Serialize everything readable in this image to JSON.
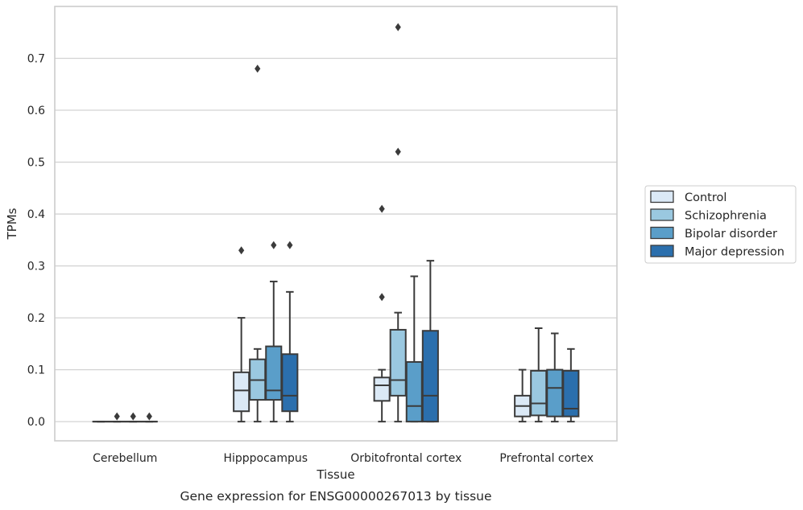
{
  "caption": "Gene expression for ENSG00000267013 by tissue",
  "chart_data": {
    "type": "box",
    "xlabel": "Tissue",
    "ylabel": "TPMs",
    "ylim": [
      -0.037,
      0.8
    ],
    "yticks": [
      "0.0",
      "0.1",
      "0.2",
      "0.3",
      "0.4",
      "0.5",
      "0.6",
      "0.7"
    ],
    "grid": true,
    "legend_position": "right",
    "categories": [
      "Cerebellum",
      "Hipppocampus",
      "Orbitofrontal cortex",
      "Prefrontal cortex"
    ],
    "series": [
      {
        "name": "Control",
        "color": "#dbe9f6",
        "boxes": [
          {
            "whislo": 0,
            "q1": 0,
            "med": 0,
            "q3": 0,
            "whishi": 0,
            "fliers": []
          },
          {
            "whislo": 0,
            "q1": 0.02,
            "med": 0.06,
            "q3": 0.095,
            "whishi": 0.2,
            "fliers": [
              0.33
            ]
          },
          {
            "whislo": 0,
            "q1": 0.04,
            "med": 0.07,
            "q3": 0.085,
            "whishi": 0.1,
            "fliers": [
              0.24,
              0.41
            ]
          },
          {
            "whislo": 0,
            "q1": 0.01,
            "med": 0.03,
            "q3": 0.05,
            "whishi": 0.1,
            "fliers": []
          }
        ]
      },
      {
        "name": "Schizophrenia",
        "color": "#9ac8e0",
        "boxes": [
          {
            "whislo": 0,
            "q1": 0,
            "med": 0,
            "q3": 0,
            "whishi": 0,
            "fliers": [
              0.01
            ]
          },
          {
            "whislo": 0,
            "q1": 0.042,
            "med": 0.08,
            "q3": 0.12,
            "whishi": 0.14,
            "fliers": [
              0.68
            ]
          },
          {
            "whislo": 0,
            "q1": 0.05,
            "med": 0.08,
            "q3": 0.177,
            "whishi": 0.21,
            "fliers": [
              0.52,
              0.76
            ]
          },
          {
            "whislo": 0,
            "q1": 0.012,
            "med": 0.035,
            "q3": 0.098,
            "whishi": 0.18,
            "fliers": []
          }
        ]
      },
      {
        "name": "Bipolar disorder",
        "color": "#5a9ec9",
        "boxes": [
          {
            "whislo": 0,
            "q1": 0,
            "med": 0,
            "q3": 0,
            "whishi": 0,
            "fliers": [
              0.01
            ]
          },
          {
            "whislo": 0,
            "q1": 0.042,
            "med": 0.06,
            "q3": 0.145,
            "whishi": 0.27,
            "fliers": [
              0.34
            ]
          },
          {
            "whislo": 0,
            "q1": 0,
            "med": 0.03,
            "q3": 0.115,
            "whishi": 0.28,
            "fliers": []
          },
          {
            "whislo": 0,
            "q1": 0.01,
            "med": 0.065,
            "q3": 0.1,
            "whishi": 0.17,
            "fliers": []
          }
        ]
      },
      {
        "name": "Major depression",
        "color": "#2b6fad",
        "boxes": [
          {
            "whislo": 0,
            "q1": 0,
            "med": 0,
            "q3": 0,
            "whishi": 0,
            "fliers": [
              0.01
            ]
          },
          {
            "whislo": 0,
            "q1": 0.02,
            "med": 0.05,
            "q3": 0.13,
            "whishi": 0.25,
            "fliers": [
              0.34
            ]
          },
          {
            "whislo": 0,
            "q1": 0,
            "med": 0.05,
            "q3": 0.175,
            "whishi": 0.31,
            "fliers": []
          },
          {
            "whislo": 0,
            "q1": 0.01,
            "med": 0.025,
            "q3": 0.098,
            "whishi": 0.14,
            "fliers": []
          }
        ]
      }
    ]
  }
}
